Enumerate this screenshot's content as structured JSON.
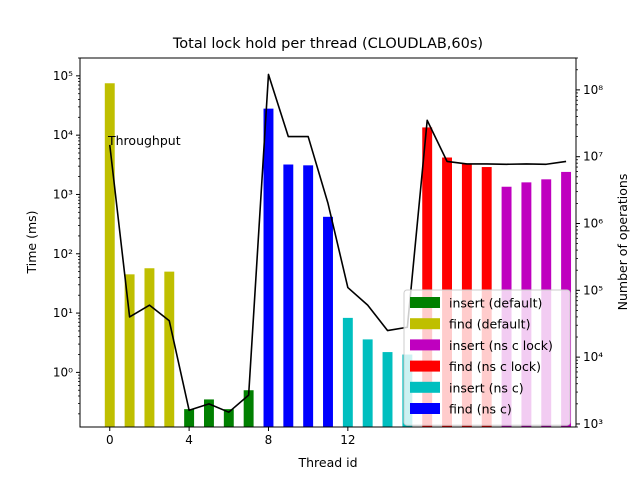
{
  "chart_data": {
    "type": "bar",
    "title": "Total lock hold per thread (CLOUDLAB,60s)",
    "xlabel": "Thread id",
    "ylabel": "Time (ms)",
    "y2label": "Number of operations",
    "annotation": "Throughput",
    "x_ticks": [
      0,
      4,
      8,
      12
    ],
    "x_tick_labels": [
      "0",
      "4",
      "8",
      "12"
    ],
    "xlim": [
      -1.5,
      23.5
    ],
    "ylim": [
      0.12,
      200000
    ],
    "y_scale": "log",
    "y_ticks": [
      1,
      10,
      100,
      1000,
      10000,
      100000
    ],
    "y_tick_labels": [
      "10⁰",
      "10¹",
      "10²",
      "10³",
      "10⁴",
      "10⁵"
    ],
    "y2lim": [
      900,
      300000000
    ],
    "y2_scale": "log",
    "y2_ticks": [
      1000,
      10000,
      100000,
      1000000,
      10000000,
      100000000
    ],
    "y2_tick_labels": [
      "10³",
      "10⁴",
      "10⁵",
      "10⁶",
      "10⁷",
      "10⁸"
    ],
    "legend_position": "lower right",
    "grid": false,
    "bar_series": [
      {
        "name": "insert (default)",
        "color": "#008000",
        "x": [
          4,
          5,
          6,
          7
        ],
        "values": [
          0.24,
          0.35,
          0.24,
          0.5
        ]
      },
      {
        "name": "find (default)",
        "color": "#bfbf00",
        "x": [
          0,
          1,
          2,
          3
        ],
        "values": [
          75000,
          45,
          57,
          50
        ]
      },
      {
        "name": "insert (ns c lock)",
        "color": "#bf00bf",
        "x": [
          20,
          21,
          22,
          23
        ],
        "values": [
          1350,
          1600,
          1800,
          2400
        ]
      },
      {
        "name": "find (ns c lock)",
        "color": "#ff0000",
        "x": [
          16,
          17,
          18,
          19
        ],
        "values": [
          13500,
          4200,
          3300,
          2900
        ]
      },
      {
        "name": "insert (ns c)",
        "color": "#00bfbf",
        "x": [
          12,
          13,
          14,
          15
        ],
        "values": [
          8.3,
          3.6,
          2.2,
          2.0
        ]
      },
      {
        "name": "find (ns c)",
        "color": "#0000ff",
        "x": [
          8,
          9,
          10,
          11
        ],
        "values": [
          28000,
          3200,
          3100,
          420
        ]
      }
    ],
    "line_series": {
      "name": "Throughput",
      "color": "#000000",
      "axis": "right",
      "x": [
        0,
        1,
        2,
        3,
        4,
        5,
        6,
        7,
        8,
        9,
        10,
        11,
        12,
        13,
        14,
        15,
        16,
        17,
        18,
        19,
        20,
        21,
        22,
        23
      ],
      "values": [
        15000000,
        40000,
        60000,
        35000,
        1600,
        2000,
        1500,
        2700,
        170000000,
        20000000,
        20000000,
        2000000,
        110000,
        60000,
        25000,
        28000,
        35000000,
        8500000,
        7800000,
        7800000,
        7700000,
        7800000,
        7700000,
        8500000
      ]
    }
  }
}
